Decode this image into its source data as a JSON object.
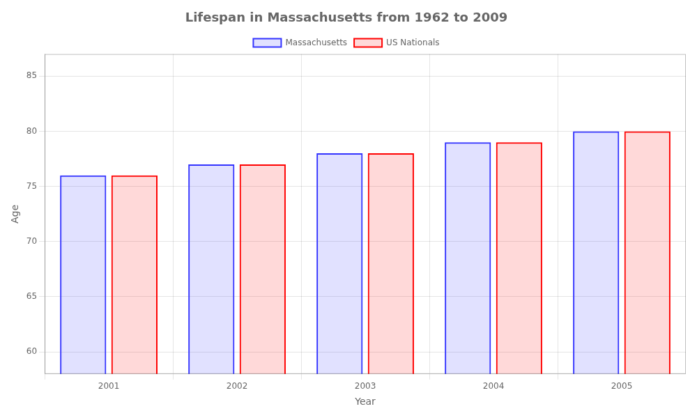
{
  "chart_data": {
    "type": "bar",
    "title": "Lifespan in Massachusetts from 1962 to 2009",
    "x_label": "Year",
    "y_label": "Age",
    "categories": [
      "2001",
      "2002",
      "2003",
      "2004",
      "2005"
    ],
    "series": [
      {
        "name": "Massachusetts",
        "color": "#3333ff",
        "values": [
          76,
          77,
          78,
          79,
          80
        ]
      },
      {
        "name": "US Nationals",
        "color": "#ff0000",
        "values": [
          76,
          77,
          78,
          79,
          80
        ]
      }
    ],
    "ylim": [
      58,
      87
    ],
    "yticks": [
      60,
      65,
      70,
      75,
      80,
      85
    ],
    "grid": true,
    "legend": "top"
  }
}
